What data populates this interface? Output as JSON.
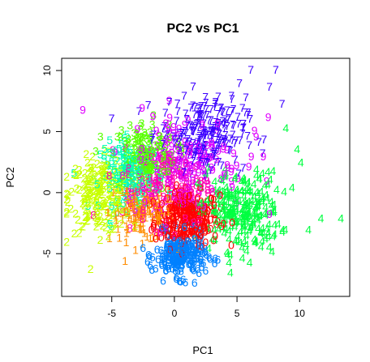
{
  "chart_data": {
    "type": "scatter",
    "title": "PC2 vs PC1",
    "xlabel": "PC1",
    "ylabel": "PC2",
    "xlim": [
      -9,
      14
    ],
    "ylim": [
      -8.5,
      11
    ],
    "xticks": [
      -5,
      0,
      5,
      10
    ],
    "yticks": [
      -5,
      0,
      5,
      10
    ],
    "marker": "digit-label",
    "series": [
      {
        "label": "0",
        "color": "#ff0000",
        "center": [
          1.0,
          -2.2
        ],
        "spread": [
          1.3,
          1.1
        ],
        "count": 260
      },
      {
        "label": "1",
        "color": "#ff8c00",
        "center": [
          -2.6,
          -1.6
        ],
        "spread": [
          1.3,
          1.2
        ],
        "count": 150
      },
      {
        "label": "2",
        "color": "#c8ff00",
        "center": [
          -6.0,
          -0.3
        ],
        "spread": [
          1.2,
          1.5
        ],
        "count": 200
      },
      {
        "label": "3",
        "color": "#58ff00",
        "center": [
          -2.5,
          3.0
        ],
        "spread": [
          1.3,
          1.4
        ],
        "count": 160
      },
      {
        "label": "4",
        "color": "#00ff40",
        "center": [
          5.2,
          -1.6
        ],
        "spread": [
          1.6,
          1.6
        ],
        "count": 260
      },
      {
        "label": "5",
        "color": "#00ffb8",
        "center": [
          -3.5,
          1.3
        ],
        "spread": [
          1.2,
          1.4
        ],
        "count": 130
      },
      {
        "label": "6",
        "color": "#0080ff",
        "center": [
          0.5,
          -5.2
        ],
        "spread": [
          1.0,
          0.9
        ],
        "count": 220
      },
      {
        "label": "7",
        "color": "#3c00ff",
        "center": [
          2.3,
          4.7
        ],
        "spread": [
          1.7,
          1.5
        ],
        "count": 240
      },
      {
        "label": "8",
        "color": "#ff00b0",
        "center": [
          -0.5,
          0.5
        ],
        "spread": [
          1.8,
          1.6
        ],
        "count": 150
      },
      {
        "label": "9",
        "color": "#e000ff",
        "center": [
          0.8,
          2.5
        ],
        "spread": [
          2.4,
          2.0
        ],
        "count": 170
      }
    ],
    "outliers": [
      {
        "label": "7",
        "x": 6.1,
        "y": 10.0
      },
      {
        "label": "7",
        "x": 8.1,
        "y": 10.0
      },
      {
        "label": "7",
        "x": 5.2,
        "y": 8.9
      },
      {
        "label": "7",
        "x": 7.6,
        "y": 8.6
      },
      {
        "label": "7",
        "x": 8.6,
        "y": 7.2
      },
      {
        "label": "7",
        "x": 4.6,
        "y": 7.6
      },
      {
        "label": "7",
        "x": -5.0,
        "y": 6.0
      },
      {
        "label": "9",
        "x": 7.5,
        "y": 6.1
      },
      {
        "label": "9",
        "x": 6.4,
        "y": 5.0
      },
      {
        "label": "9",
        "x": 7.1,
        "y": 2.9
      },
      {
        "label": "4",
        "x": 8.9,
        "y": 5.2
      },
      {
        "label": "4",
        "x": 9.8,
        "y": 3.5
      },
      {
        "label": "4",
        "x": 10.1,
        "y": 2.4
      },
      {
        "label": "4",
        "x": 7.0,
        "y": 1.5
      },
      {
        "label": "4",
        "x": 11.7,
        "y": -2.2
      },
      {
        "label": "4",
        "x": 10.7,
        "y": -3.1
      },
      {
        "label": "4",
        "x": 13.3,
        "y": -2.2
      },
      {
        "label": "4",
        "x": 7.8,
        "y": -4.9
      },
      {
        "label": "6",
        "x": -0.9,
        "y": -7.3
      },
      {
        "label": "6",
        "x": -1.8,
        "y": -6.4
      },
      {
        "label": "6",
        "x": 0.2,
        "y": -7.0
      },
      {
        "label": "6",
        "x": -2.5,
        "y": -4.6
      },
      {
        "label": "2",
        "x": -8.2,
        "y": 0.0
      },
      {
        "label": "2",
        "x": -7.6,
        "y": 1.8
      }
    ]
  }
}
